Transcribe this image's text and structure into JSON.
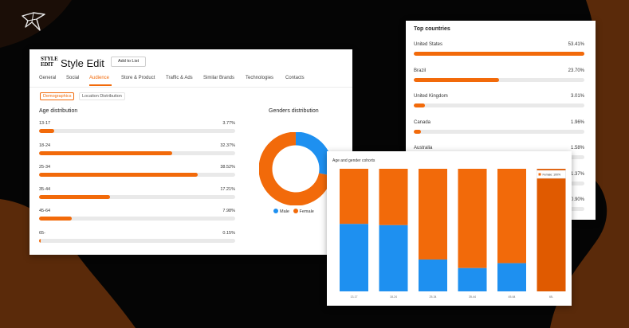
{
  "colors": {
    "accent": "#f26a0a",
    "male": "#1e90f0",
    "female": "#f26a0a",
    "female_dark": "#e05a00",
    "background": "#050505",
    "blob": "#5a2a0a"
  },
  "logo_icon": "origami-bird-icon",
  "brand": {
    "logo_text": "STYLE EDIT",
    "title": "Style Edit",
    "add_to_list": "Add to List"
  },
  "tabs": [
    "General",
    "Social",
    "Audience",
    "Store & Product",
    "Traffic & Ads",
    "Similar Brands",
    "Technologies",
    "Contacts"
  ],
  "active_tab": "Audience",
  "subtabs": {
    "demographics": "Demographics",
    "location": "Location Distribution"
  },
  "age_distribution": {
    "title": "Age distribution",
    "rows": [
      {
        "label": "13-17",
        "value": "3.77%",
        "pct": 3.77
      },
      {
        "label": "18-24",
        "value": "32.37%",
        "pct": 32.37
      },
      {
        "label": "25-34",
        "value": "38.52%",
        "pct": 38.52
      },
      {
        "label": "35-44",
        "value": "17.21%",
        "pct": 17.21
      },
      {
        "label": "45-64",
        "value": "7.98%",
        "pct": 7.98
      },
      {
        "label": "65-",
        "value": "0.15%",
        "pct": 0.15
      }
    ]
  },
  "genders": {
    "title": "Genders distribution",
    "male_label": "Male",
    "female_label": "Female",
    "male_pct": 28,
    "female_pct": 72
  },
  "top_countries": {
    "title": "Top countries",
    "rows": [
      {
        "name": "United States",
        "value": "53.41%",
        "pct": 53.41
      },
      {
        "name": "Brazil",
        "value": "23.70%",
        "pct": 23.7
      },
      {
        "name": "United Kingdom",
        "value": "3.01%",
        "pct": 3.01
      },
      {
        "name": "Canada",
        "value": "1.96%",
        "pct": 1.96
      },
      {
        "name": "Australia",
        "value": "1.58%",
        "pct": 1.58
      },
      {
        "name": "",
        "value": "1.37%",
        "pct": 1.37
      },
      {
        "name": "",
        "value": "0.90%",
        "pct": 0.9
      }
    ]
  },
  "chart_data": {
    "type": "bar",
    "title": "Age and gender cohorts",
    "categories": [
      "13-17",
      "18-24",
      "25-34",
      "35-44",
      "45-64",
      "65-"
    ],
    "series": [
      {
        "name": "Male",
        "values": [
          55,
          54,
          26,
          19,
          23,
          0
        ]
      },
      {
        "name": "Female",
        "values": [
          45,
          46,
          74,
          81,
          77,
          100
        ]
      }
    ],
    "tooltip": "Female: 100%",
    "ylim": [
      0,
      100
    ],
    "legend": "none",
    "grid": false
  }
}
